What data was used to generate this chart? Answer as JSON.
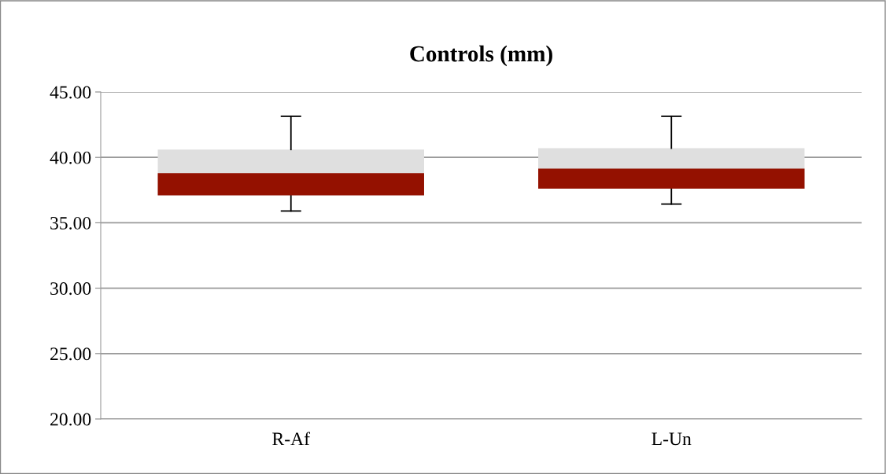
{
  "chart_data": {
    "type": "box",
    "title": "Controls (mm)",
    "categories": [
      "R-Af",
      "L-Un"
    ],
    "colors": [
      "#941100",
      "#dfdfdf"
    ],
    "boxes": [
      {
        "low": 35.9,
        "q1": 37.1,
        "median": 38.8,
        "q3": 40.6,
        "high": 43.14
      },
      {
        "low": 36.43,
        "q1": 37.61,
        "median": 39.14,
        "q3": 40.7,
        "high": 43.14
      }
    ],
    "ylim": [
      20,
      45
    ],
    "yticks": [
      {
        "value": 20,
        "label": "20.00"
      },
      {
        "value": 25,
        "label": "25.00"
      },
      {
        "value": 30,
        "label": "30.00"
      },
      {
        "value": 35,
        "label": "35.00"
      },
      {
        "value": 40,
        "label": "40.00"
      },
      {
        "value": 45,
        "label": "45.00"
      }
    ],
    "grid": "y",
    "legend": false
  }
}
